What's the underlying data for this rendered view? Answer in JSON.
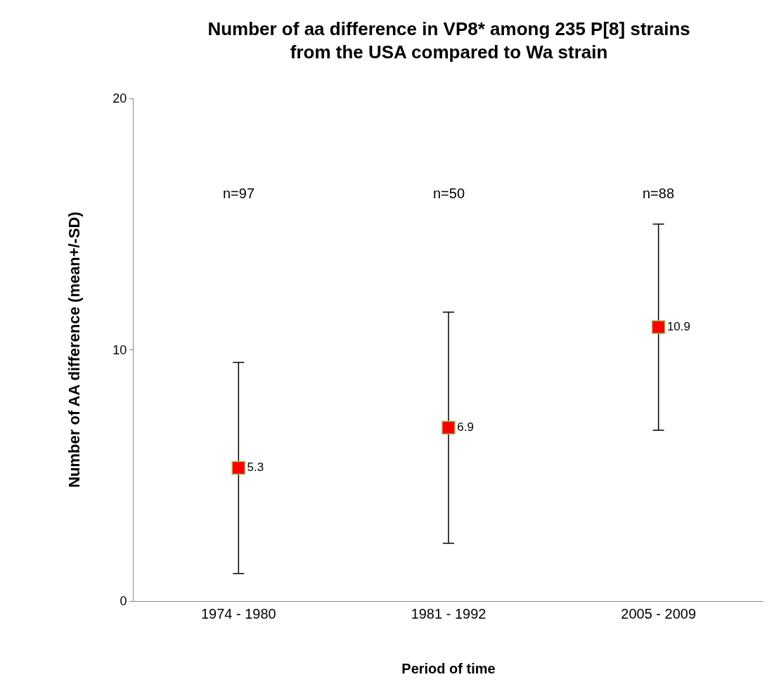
{
  "chart_data": {
    "type": "scatter",
    "title": "Number of aa difference in VP8* among 235 P[8] strains from the USA compared to Wa strain",
    "xlabel": "Period of time",
    "ylabel": "Number of AA difference (mean+/-SD)",
    "categories": [
      "1974 - 1980",
      "1981 - 1992",
      "2005 - 2009"
    ],
    "series": [
      {
        "color": "#ff0000",
        "values": [
          5.3,
          6.9,
          10.9
        ],
        "errors": [
          4.2,
          4.6,
          4.1
        ]
      }
    ],
    "data_labels": true,
    "marker": "square",
    "ylim": [
      0,
      20
    ],
    "yticks": [
      0,
      10,
      20
    ],
    "annotations": [
      "n=97",
      "n=50",
      "n=88"
    ]
  }
}
